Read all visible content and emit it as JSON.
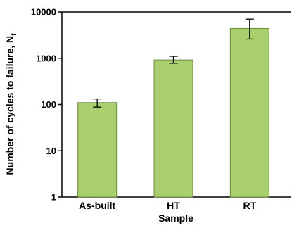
{
  "chart_data": {
    "type": "bar",
    "title": "",
    "xlabel": "Sample",
    "ylabel": "Number of cycles to failure, N",
    "ylabel_subscript": "f",
    "yscale": "log",
    "ylim": [
      1,
      10000
    ],
    "yticks": [
      "1",
      "10",
      "100",
      "1000",
      "10000"
    ],
    "categories": [
      "As-built",
      "HT",
      "RT"
    ],
    "values": [
      110,
      920,
      4400
    ],
    "error_low": [
      88,
      780,
      2600
    ],
    "error_high": [
      132,
      1100,
      7000
    ],
    "bar_color": "#a9cf6e",
    "bar_edge_color": "#6a8a3a",
    "grid": false,
    "legend": "none"
  }
}
